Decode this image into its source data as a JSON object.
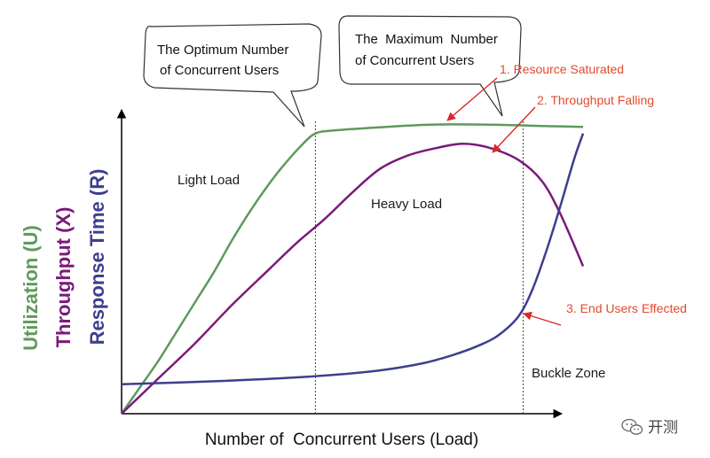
{
  "chart_data": {
    "type": "line",
    "xlabel": "Number of  Concurrent Users (Load)",
    "ylabels": [
      {
        "text": "Utilization (U)",
        "color": "#5e9a5e"
      },
      {
        "text": "Throughput (X)",
        "color": "#7a1a7a"
      },
      {
        "text": "Response Time (R)",
        "color": "#3e3e8e"
      }
    ],
    "x_range": [
      0,
      100
    ],
    "y_range": [
      0,
      100
    ],
    "grid": false,
    "legend": "none",
    "series": [
      {
        "key": "utilization",
        "color": "#5e9a5e",
        "points": [
          [
            0,
            0
          ],
          [
            4,
            9
          ],
          [
            8,
            18
          ],
          [
            12,
            28
          ],
          [
            16,
            38
          ],
          [
            20,
            48
          ],
          [
            24,
            59
          ],
          [
            28,
            69
          ],
          [
            32,
            78
          ],
          [
            35,
            84
          ],
          [
            39,
            91
          ],
          [
            42,
            95
          ],
          [
            46,
            96
          ],
          [
            55,
            97
          ],
          [
            67,
            98
          ],
          [
            80,
            98
          ],
          [
            92,
            97.5
          ],
          [
            100,
            97.2
          ]
        ]
      },
      {
        "key": "throughput",
        "color": "#7a1a7a",
        "points": [
          [
            0,
            0
          ],
          [
            8,
            12
          ],
          [
            16,
            24
          ],
          [
            24,
            37
          ],
          [
            32,
            49
          ],
          [
            38,
            58
          ],
          [
            44,
            66
          ],
          [
            50,
            75
          ],
          [
            56,
            83
          ],
          [
            62,
            87.5
          ],
          [
            68,
            90
          ],
          [
            74,
            91.5
          ],
          [
            80,
            90
          ],
          [
            86,
            86
          ],
          [
            91,
            79
          ],
          [
            95,
            68
          ],
          [
            100,
            50
          ]
        ]
      },
      {
        "key": "response_time",
        "color": "#3e3e8e",
        "points": [
          [
            0,
            10
          ],
          [
            20,
            11
          ],
          [
            40,
            12.5
          ],
          [
            55,
            14.5
          ],
          [
            65,
            17
          ],
          [
            72,
            20
          ],
          [
            78,
            23.5
          ],
          [
            82,
            27
          ],
          [
            86,
            33
          ],
          [
            89,
            42
          ],
          [
            92,
            55
          ],
          [
            95,
            70
          ],
          [
            98,
            86
          ],
          [
            100,
            95
          ]
        ]
      }
    ],
    "markers": [
      {
        "key": "optimum",
        "x": 42
      },
      {
        "key": "maximum",
        "x": 87
      }
    ],
    "zones": [
      {
        "key": "light",
        "label": "Light Load"
      },
      {
        "key": "heavy",
        "label": "Heavy Load"
      },
      {
        "key": "buckle",
        "label": "Buckle Zone"
      }
    ],
    "callouts": [
      {
        "key": "optimum",
        "lines": [
          "The Optimum Number",
          "of Concurrent Users"
        ]
      },
      {
        "key": "maximum",
        "lines": [
          "The  Maximum  Number",
          "of Concurrent Users"
        ]
      }
    ],
    "annotations": [
      {
        "key": "resource",
        "text": "1. Resource Saturated",
        "color": "#e24a2c"
      },
      {
        "key": "falling",
        "text": "2. Throughput Falling",
        "color": "#e24a2c"
      },
      {
        "key": "endusers",
        "text": "3. End Users Effected",
        "color": "#e24a2c"
      }
    ]
  },
  "watermark": {
    "text": "开测",
    "icon": "wechat-icon"
  }
}
